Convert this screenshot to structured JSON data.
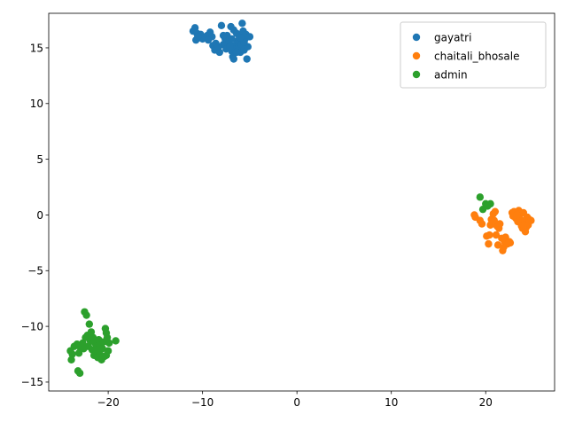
{
  "chart_data": {
    "type": "scatter",
    "title": "",
    "xlabel": "",
    "ylabel": "",
    "xlim": [
      -26.3,
      27.3
    ],
    "ylim": [
      -15.8,
      18.1
    ],
    "xticks": [
      -20,
      -10,
      0,
      10,
      20
    ],
    "yticks": [
      -15,
      -10,
      -5,
      0,
      5,
      10,
      15
    ],
    "xtick_labels": [
      "−20",
      "−10",
      "0",
      "10",
      "20"
    ],
    "ytick_labels": [
      "−15",
      "−10",
      "−5",
      "0",
      "5",
      "10",
      "15"
    ],
    "grid": false,
    "legend_position": "top-right",
    "series": [
      {
        "name": "gayatri",
        "color": "#1f77b4",
        "points": [
          [
            -11.0,
            16.5
          ],
          [
            -10.8,
            16.8
          ],
          [
            -10.6,
            16.3
          ],
          [
            -10.4,
            15.9
          ],
          [
            -10.7,
            15.7
          ],
          [
            -10.2,
            16.2
          ],
          [
            -9.8,
            15.9
          ],
          [
            -9.5,
            16.1
          ],
          [
            -9.2,
            16.4
          ],
          [
            -8.9,
            15.2
          ],
          [
            -8.7,
            14.8
          ],
          [
            -8.5,
            15.0
          ],
          [
            -8.2,
            14.6
          ],
          [
            -8.0,
            17.0
          ],
          [
            -7.8,
            15.3
          ],
          [
            -7.6,
            15.8
          ],
          [
            -7.4,
            16.1
          ],
          [
            -7.2,
            15.5
          ],
          [
            -7.0,
            16.9
          ],
          [
            -6.9,
            14.7
          ],
          [
            -6.8,
            14.2
          ],
          [
            -6.7,
            16.6
          ],
          [
            -6.6,
            15.2
          ],
          [
            -6.5,
            14.9
          ],
          [
            -6.4,
            16.3
          ],
          [
            -6.3,
            15.6
          ],
          [
            -6.2,
            15.0
          ],
          [
            -6.1,
            16.0
          ],
          [
            -6.0,
            14.6
          ],
          [
            -5.9,
            15.3
          ],
          [
            -5.8,
            17.2
          ],
          [
            -5.7,
            16.5
          ],
          [
            -5.6,
            14.8
          ],
          [
            -5.5,
            15.8
          ],
          [
            -5.4,
            16.2
          ],
          [
            -5.3,
            14.0
          ],
          [
            -5.2,
            15.1
          ],
          [
            -5.0,
            16.0
          ],
          [
            -7.5,
            14.9
          ],
          [
            -8.6,
            15.4
          ],
          [
            -9.0,
            16.0
          ],
          [
            -10.0,
            15.8
          ],
          [
            -6.9,
            15.8
          ],
          [
            -7.1,
            15.1
          ],
          [
            -6.4,
            14.6
          ],
          [
            -8.3,
            15.1
          ],
          [
            -9.4,
            15.7
          ],
          [
            -6.7,
            14.0
          ],
          [
            -5.6,
            15.5
          ],
          [
            -7.8,
            16.1
          ],
          [
            -10.5,
            16.0
          ],
          [
            -6.0,
            15.9
          ]
        ]
      },
      {
        "name": "chaitali_bhosale",
        "color": "#ff7f0e",
        "points": [
          [
            18.8,
            0.0
          ],
          [
            18.9,
            -0.2
          ],
          [
            19.4,
            -0.5
          ],
          [
            19.6,
            -0.8
          ],
          [
            20.1,
            -1.9
          ],
          [
            20.3,
            -2.6
          ],
          [
            20.5,
            -0.9
          ],
          [
            20.6,
            -0.4
          ],
          [
            20.8,
            0.1
          ],
          [
            21.0,
            0.3
          ],
          [
            21.1,
            -1.8
          ],
          [
            21.3,
            -2.7
          ],
          [
            21.4,
            -1.2
          ],
          [
            21.5,
            -0.8
          ],
          [
            21.7,
            -2.1
          ],
          [
            21.8,
            -3.2
          ],
          [
            21.9,
            -2.9
          ],
          [
            22.0,
            -2.4
          ],
          [
            22.3,
            -2.6
          ],
          [
            22.6,
            -2.5
          ],
          [
            22.8,
            0.2
          ],
          [
            22.9,
            -0.1
          ],
          [
            23.0,
            0.3
          ],
          [
            23.2,
            -0.3
          ],
          [
            23.4,
            -0.6
          ],
          [
            23.5,
            0.4
          ],
          [
            23.6,
            0.1
          ],
          [
            23.7,
            -0.4
          ],
          [
            23.8,
            -1.0
          ],
          [
            23.9,
            -1.2
          ],
          [
            24.0,
            0.2
          ],
          [
            24.1,
            -0.7
          ],
          [
            24.2,
            -1.5
          ],
          [
            24.3,
            -1.1
          ],
          [
            24.4,
            -0.2
          ],
          [
            24.5,
            -0.9
          ],
          [
            24.6,
            -0.4
          ],
          [
            24.8,
            -0.5
          ],
          [
            21.2,
            -1.0
          ],
          [
            22.1,
            -2.0
          ],
          [
            20.9,
            -0.5
          ],
          [
            23.3,
            0.0
          ],
          [
            24.0,
            -0.9
          ],
          [
            20.4,
            -1.8
          ],
          [
            22.5,
            -2.4
          ]
        ]
      },
      {
        "name": "admin",
        "color": "#2ca02c",
        "points": [
          [
            19.4,
            1.6
          ],
          [
            19.7,
            0.5
          ],
          [
            20.0,
            1.0
          ],
          [
            20.2,
            0.8
          ],
          [
            20.5,
            1.0
          ],
          [
            -24.0,
            -12.2
          ],
          [
            -23.8,
            -12.5
          ],
          [
            -23.9,
            -13.0
          ],
          [
            -23.6,
            -11.8
          ],
          [
            -23.3,
            -11.6
          ],
          [
            -23.2,
            -14.0
          ],
          [
            -23.0,
            -14.2
          ],
          [
            -23.1,
            -12.4
          ],
          [
            -22.9,
            -12.0
          ],
          [
            -22.7,
            -11.5
          ],
          [
            -22.5,
            -8.7
          ],
          [
            -22.4,
            -11.0
          ],
          [
            -22.3,
            -9.0
          ],
          [
            -22.2,
            -10.8
          ],
          [
            -22.1,
            -11.8
          ],
          [
            -22.0,
            -9.8
          ],
          [
            -21.9,
            -11.3
          ],
          [
            -21.8,
            -10.5
          ],
          [
            -21.7,
            -12.1
          ],
          [
            -21.6,
            -11.0
          ],
          [
            -21.5,
            -12.6
          ],
          [
            -21.4,
            -11.5
          ],
          [
            -21.3,
            -12.2
          ],
          [
            -21.2,
            -11.8
          ],
          [
            -21.1,
            -12.8
          ],
          [
            -21.0,
            -11.2
          ],
          [
            -20.9,
            -12.5
          ],
          [
            -20.8,
            -11.7
          ],
          [
            -20.7,
            -13.0
          ],
          [
            -20.6,
            -12.0
          ],
          [
            -20.5,
            -11.4
          ],
          [
            -20.4,
            -12.7
          ],
          [
            -20.3,
            -10.2
          ],
          [
            -20.2,
            -10.6
          ],
          [
            -20.1,
            -11.0
          ],
          [
            -20.0,
            -12.2
          ],
          [
            -19.9,
            -11.5
          ],
          [
            -20.2,
            -12.6
          ],
          [
            -19.2,
            -11.3
          ],
          [
            -21.7,
            -11.0
          ],
          [
            -22.6,
            -12.0
          ],
          [
            -21.0,
            -12.0
          ]
        ]
      }
    ]
  }
}
